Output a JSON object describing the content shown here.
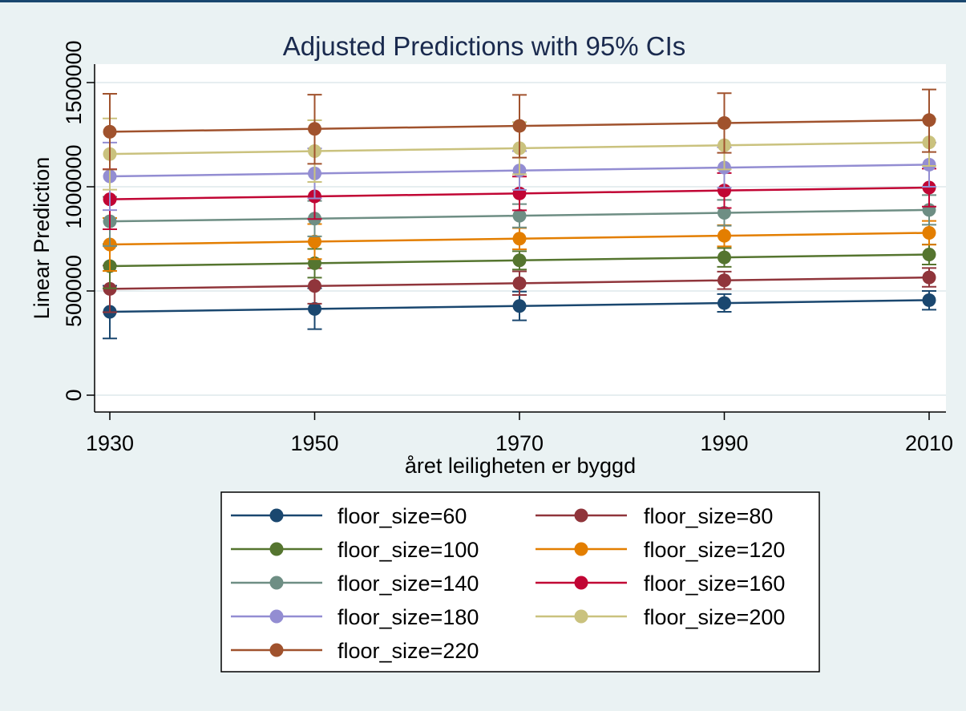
{
  "chart_data": {
    "type": "line",
    "title": "Adjusted Predictions with 95% CIs",
    "xlabel": "året leiligheten er byggd",
    "ylabel": "Linear Prediction",
    "x": [
      1930,
      1950,
      1970,
      1990,
      2010
    ],
    "xlim": [
      1930,
      2010
    ],
    "ylim": [
      0,
      1500000
    ],
    "xticks": [
      "1930",
      "1950",
      "1970",
      "1990",
      "2010"
    ],
    "yticks": [
      {
        "value": 0,
        "label": "0"
      },
      {
        "value": 500000,
        "label": "500000"
      },
      {
        "value": 1000000,
        "label": "1000000"
      },
      {
        "value": 1500000,
        "label": "1500000"
      }
    ],
    "grid": true,
    "legend_position": "bottom",
    "series": [
      {
        "name": "floor_size=60",
        "color": "#1a476f",
        "values": [
          400000,
          414000,
          428000,
          442000,
          456000
        ],
        "lower": [
          272000,
          317000,
          359000,
          400000,
          410000
        ],
        "upper": [
          525000,
          513000,
          497000,
          485000,
          500000
        ]
      },
      {
        "name": "floor_size=80",
        "color": "#90353b",
        "values": [
          510000,
          524000,
          537000,
          551000,
          565000
        ],
        "lower": [
          398000,
          439000,
          481000,
          509000,
          520000
        ],
        "upper": [
          622000,
          609000,
          594000,
          593000,
          610000
        ]
      },
      {
        "name": "floor_size=100",
        "color": "#55752f",
        "values": [
          619000,
          633000,
          647000,
          661000,
          675000
        ],
        "lower": [
          513000,
          564000,
          603000,
          616000,
          627000
        ],
        "upper": [
          725000,
          702000,
          691000,
          706000,
          723000
        ]
      },
      {
        "name": "floor_size=120",
        "color": "#e37e00",
        "values": [
          723000,
          737000,
          751000,
          765000,
          779000
        ],
        "lower": [
          596000,
          653000,
          700000,
          714000,
          722000
        ],
        "upper": [
          850000,
          821000,
          802000,
          816000,
          836000
        ]
      },
      {
        "name": "floor_size=140",
        "color": "#6e8e84",
        "values": [
          834000,
          847000,
          861000,
          875000,
          889000
        ],
        "lower": [
          716000,
          762000,
          805000,
          813000,
          818000
        ],
        "upper": [
          952000,
          932000,
          917000,
          937000,
          960000
        ]
      },
      {
        "name": "floor_size=160",
        "color": "#c10534",
        "values": [
          940000,
          954000,
          968000,
          982000,
          996000
        ],
        "lower": [
          796000,
          845000,
          887000,
          898000,
          905000
        ],
        "upper": [
          1084000,
          1063000,
          1049000,
          1066000,
          1087000
        ]
      },
      {
        "name": "floor_size=180",
        "color": "#938dd2",
        "values": [
          1050000,
          1064000,
          1078000,
          1092000,
          1106000
        ],
        "lower": [
          888000,
          944000,
          985000,
          995000,
          1000000
        ],
        "upper": [
          1212000,
          1184000,
          1171000,
          1189000,
          1212000
        ]
      },
      {
        "name": "floor_size=200",
        "color": "#cac27e",
        "values": [
          1157000,
          1171000,
          1185000,
          1199000,
          1213000
        ],
        "lower": [
          986000,
          1023000,
          1060000,
          1083000,
          1100000
        ],
        "upper": [
          1328000,
          1319000,
          1310000,
          1315000,
          1326000
        ]
      },
      {
        "name": "floor_size=220",
        "color": "#a0522d",
        "values": [
          1264000,
          1278000,
          1292000,
          1306000,
          1320000
        ],
        "lower": [
          1083000,
          1110000,
          1140000,
          1163000,
          1167000
        ],
        "upper": [
          1446000,
          1442000,
          1441000,
          1449000,
          1467000
        ]
      }
    ]
  }
}
